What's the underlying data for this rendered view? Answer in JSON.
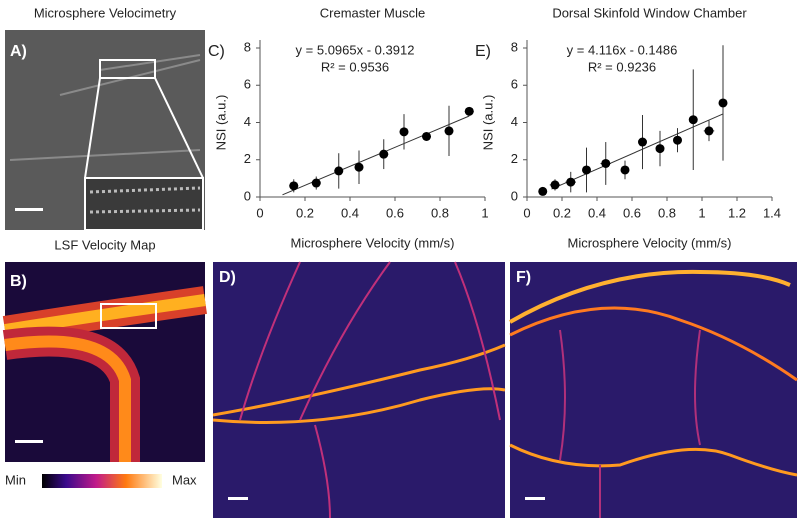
{
  "panels": {
    "a_title": "Microsphere Velocimetry",
    "a_label": "A)",
    "b_title": "LSF Velocity Map",
    "b_label": "B)",
    "d_label": "D)",
    "f_label": "F)",
    "colorbar_min": "Min",
    "colorbar_max": "Max"
  },
  "chart_data": [
    {
      "type": "scatter",
      "title": "Cremaster Muscle",
      "panel_label": "C)",
      "x_label": "Microsphere Velocity (mm/s)",
      "y_label": "NSI (a.u.)",
      "equation": "y = 5.0965x - 0.3912",
      "r_squared": "R² = 0.9536",
      "fit": {
        "slope": 5.0965,
        "intercept": -0.3912
      },
      "x": [
        0.15,
        0.25,
        0.35,
        0.44,
        0.55,
        0.64,
        0.74,
        0.84,
        0.93
      ],
      "xerr": [
        0.02,
        0.02,
        0.02,
        0.02,
        0.02,
        0.02,
        0.02,
        0.02,
        0.02
      ],
      "values": [
        0.6,
        0.75,
        1.4,
        1.6,
        2.3,
        3.5,
        3.25,
        3.55,
        4.6
      ],
      "yerr": [
        0.35,
        0.35,
        0.95,
        0.9,
        0.8,
        0.95,
        0.2,
        1.35,
        0.2
      ],
      "color": "#000000",
      "xlim": [
        0,
        1
      ],
      "xticks": [
        0,
        0.2,
        0.4,
        0.6,
        0.8,
        1
      ],
      "ylim": [
        0,
        8
      ],
      "yticks": [
        0,
        2,
        4,
        6,
        8
      ]
    },
    {
      "type": "scatter",
      "title": "Dorsal Skinfold Window Chamber",
      "panel_label": "E)",
      "x_label": "Microsphere Velocity (mm/s)",
      "y_label": "NSI (a.u.)",
      "equation": "y = 4.116x - 0.1486",
      "r_squared": "R² = 0.9236",
      "fit": {
        "slope": 4.116,
        "intercept": -0.1486
      },
      "x": [
        0.09,
        0.16,
        0.25,
        0.34,
        0.45,
        0.56,
        0.66,
        0.76,
        0.86,
        0.95,
        1.04,
        1.12
      ],
      "xerr": [
        0.01,
        0.03,
        0.03,
        0.02,
        0.03,
        0.02,
        0.02,
        0.02,
        0.02,
        0.02,
        0.03,
        0.02
      ],
      "values": [
        0.3,
        0.65,
        0.8,
        1.45,
        1.8,
        1.45,
        2.95,
        2.6,
        3.05,
        4.15,
        3.55,
        5.05
      ],
      "yerr": [
        0.1,
        0.3,
        0.55,
        1.2,
        1.15,
        0.5,
        1.45,
        0.95,
        0.65,
        2.7,
        0.55,
        3.1
      ],
      "color": "#000000",
      "xlim": [
        0,
        1.4
      ],
      "xticks": [
        0,
        0.2,
        0.4,
        0.6,
        0.8,
        1,
        1.2,
        1.4
      ],
      "ylim": [
        0,
        8
      ],
      "yticks": [
        0,
        2,
        4,
        6,
        8
      ]
    }
  ]
}
